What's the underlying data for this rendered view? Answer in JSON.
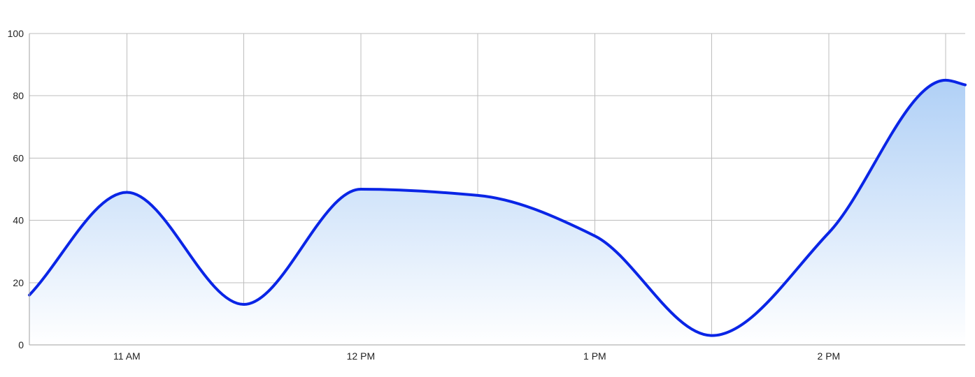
{
  "chart_data": {
    "type": "area",
    "title": "",
    "xlabel": "",
    "ylabel": "",
    "ylim": [
      0,
      100
    ],
    "yticks": [
      0,
      20,
      40,
      60,
      80,
      100
    ],
    "xlim": [
      "10:35",
      "14:35"
    ],
    "xticks": [
      {
        "time": "11:00",
        "label": "11 AM"
      },
      {
        "time": "12:00",
        "label": "12 PM"
      },
      {
        "time": "13:00",
        "label": "1 PM"
      },
      {
        "time": "14:00",
        "label": "2 PM"
      }
    ],
    "grid": true,
    "legend": "none",
    "series": [
      {
        "x": [
          "10:35",
          "11:00",
          "11:30",
          "12:00",
          "12:30",
          "13:00",
          "13:30",
          "14:00",
          "14:30",
          "14:35"
        ],
        "values": [
          16,
          49,
          13,
          50,
          48,
          35,
          3,
          36,
          85,
          83.5
        ]
      }
    ],
    "colors": {
      "line": "#0a25e6",
      "fill_top": "#b0d0f6",
      "fill_bottom": "#ffffff",
      "grid": "#bdbdbd",
      "text": "#222222"
    }
  }
}
